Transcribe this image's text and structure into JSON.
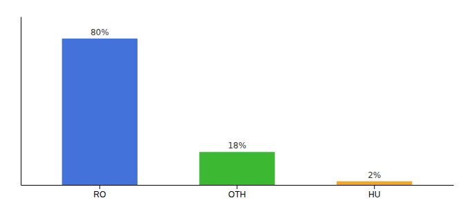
{
  "chart_data": {
    "type": "bar",
    "categories": [
      "RO",
      "OTH",
      "HU"
    ],
    "values": [
      80,
      18,
      2
    ],
    "value_labels": [
      "80%",
      "18%",
      "2%"
    ],
    "colors": [
      "#4472db",
      "#3db832",
      "#f5a623"
    ],
    "ylim": [
      0,
      92
    ],
    "yticks": [],
    "tick_labels": "x",
    "data_labels": true
  }
}
